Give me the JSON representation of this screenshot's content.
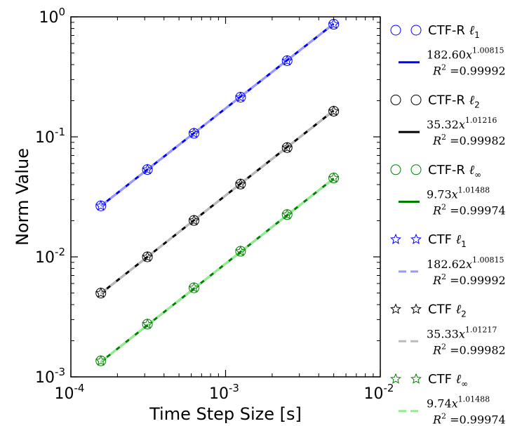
{
  "chart_data": {
    "type": "scatter",
    "xlabel": "Time Step Size [s]",
    "ylabel": "Norm Value",
    "xscale": "log",
    "yscale": "log",
    "xlim": [
      0.0001,
      0.01
    ],
    "ylim": [
      0.001,
      1
    ],
    "grid": false,
    "legend_position": "outside-right",
    "x_ticks": [
      {
        "base": "10",
        "exp": "-4",
        "value": 0.0001
      },
      {
        "base": "10",
        "exp": "-3",
        "value": 0.001
      },
      {
        "base": "10",
        "exp": "-2",
        "value": 0.01
      }
    ],
    "y_ticks": [
      {
        "base": "10",
        "exp": "-3",
        "value": 0.001
      },
      {
        "base": "10",
        "exp": "-2",
        "value": 0.01
      },
      {
        "base": "10",
        "exp": "-1",
        "value": 0.1
      },
      {
        "base": "10",
        "exp": "0",
        "value": 1
      }
    ],
    "x": [
      0.00015625,
      0.0003125,
      0.000625,
      0.00125,
      0.0025,
      0.005
    ],
    "series": [
      {
        "name": "CTF-R ℓ₁",
        "kind": "markers",
        "marker": "circle",
        "color": "#0000ff",
        "values": [
          0.0266,
          0.0534,
          0.107,
          0.214,
          0.431,
          0.868
        ]
      },
      {
        "name": "182.60x^1.00815 R² =0.99992",
        "kind": "fit",
        "line": "solid",
        "color": "#0000ff",
        "coef": 182.6,
        "exponent": 1.00815,
        "r2": "0.99992"
      },
      {
        "name": "CTF-R ℓ₂",
        "kind": "markers",
        "marker": "circle",
        "color": "#000000",
        "values": [
          0.00499,
          0.01,
          0.0201,
          0.0404,
          0.0813,
          0.1636
        ]
      },
      {
        "name": "35.32x^1.01216 R² =0.99982",
        "kind": "fit",
        "line": "solid",
        "color": "#000000",
        "coef": 35.32,
        "exponent": 1.01216,
        "r2": "0.99982"
      },
      {
        "name": "CTF-R ℓ∞",
        "kind": "markers",
        "marker": "circle",
        "color": "#008000",
        "values": [
          0.00136,
          0.00275,
          0.00552,
          0.01113,
          0.0225,
          0.0454
        ]
      },
      {
        "name": "9.73x^1.01488 R² =0.99974",
        "kind": "fit",
        "line": "solid",
        "color": "#008000",
        "coef": 9.73,
        "exponent": 1.01488,
        "r2": "0.99974"
      },
      {
        "name": "CTF ℓ₁",
        "kind": "markers",
        "marker": "star",
        "color": "#0000ff",
        "values": [
          0.0266,
          0.0534,
          0.107,
          0.214,
          0.431,
          0.868
        ]
      },
      {
        "name": "182.62x^1.00815 R² =0.99992",
        "kind": "fit",
        "line": "dashed",
        "color": "#9999ff",
        "coef": 182.62,
        "exponent": 1.00815,
        "r2": "0.99992"
      },
      {
        "name": "CTF ℓ₂",
        "kind": "markers",
        "marker": "star",
        "color": "#000000",
        "values": [
          0.00499,
          0.01,
          0.0201,
          0.0404,
          0.0813,
          0.1636
        ]
      },
      {
        "name": "35.33x^1.01217 R² =0.99982",
        "kind": "fit",
        "line": "dashed",
        "color": "#bbbbbb",
        "coef": 35.33,
        "exponent": 1.01217,
        "r2": "0.99982"
      },
      {
        "name": "CTF ℓ∞",
        "kind": "markers",
        "marker": "star",
        "color": "#008000",
        "values": [
          0.00136,
          0.00275,
          0.00552,
          0.01113,
          0.0225,
          0.0454
        ]
      },
      {
        "name": "9.74x^1.01488 R² =0.99974",
        "kind": "fit",
        "line": "dashed",
        "color": "#90ee90",
        "coef": 9.74,
        "exponent": 1.01488,
        "r2": "0.99974"
      }
    ],
    "legend": [
      {
        "kind": "markers",
        "marker": "circle",
        "color": "#0000ff",
        "label_main": "CTF-R ",
        "label_sym": "ℓ",
        "label_sub": "1"
      },
      {
        "kind": "fit",
        "line": "solid",
        "color": "#0000ff",
        "coef": "182.60",
        "exp": "1.00815",
        "r2": "0.99992"
      },
      {
        "kind": "markers",
        "marker": "circle",
        "color": "#000000",
        "label_main": "CTF-R ",
        "label_sym": "ℓ",
        "label_sub": "2"
      },
      {
        "kind": "fit",
        "line": "solid",
        "color": "#000000",
        "coef": "35.32",
        "exp": "1.01216",
        "r2": "0.99982"
      },
      {
        "kind": "markers",
        "marker": "circle",
        "color": "#008000",
        "label_main": "CTF-R ",
        "label_sym": "ℓ",
        "label_sub": "∞"
      },
      {
        "kind": "fit",
        "line": "solid",
        "color": "#008000",
        "coef": "9.73",
        "exp": "1.01488",
        "r2": "0.99974"
      },
      {
        "kind": "markers",
        "marker": "star",
        "color": "#0000ff",
        "label_main": "CTF ",
        "label_sym": "ℓ",
        "label_sub": "1"
      },
      {
        "kind": "fit",
        "line": "dashed",
        "color": "#9999ff",
        "coef": "182.62",
        "exp": "1.00815",
        "r2": "0.99992"
      },
      {
        "kind": "markers",
        "marker": "star",
        "color": "#000000",
        "label_main": "CTF ",
        "label_sym": "ℓ",
        "label_sub": "2"
      },
      {
        "kind": "fit",
        "line": "dashed",
        "color": "#bbbbbb",
        "coef": "35.33",
        "exp": "1.01217",
        "r2": "0.99982"
      },
      {
        "kind": "markers",
        "marker": "star",
        "color": "#008000",
        "label_main": "CTF ",
        "label_sym": "ℓ",
        "label_sub": "∞"
      },
      {
        "kind": "fit",
        "line": "dashed",
        "color": "#90ee90",
        "coef": "9.74",
        "exp": "1.01488",
        "r2": "0.99974"
      }
    ]
  }
}
